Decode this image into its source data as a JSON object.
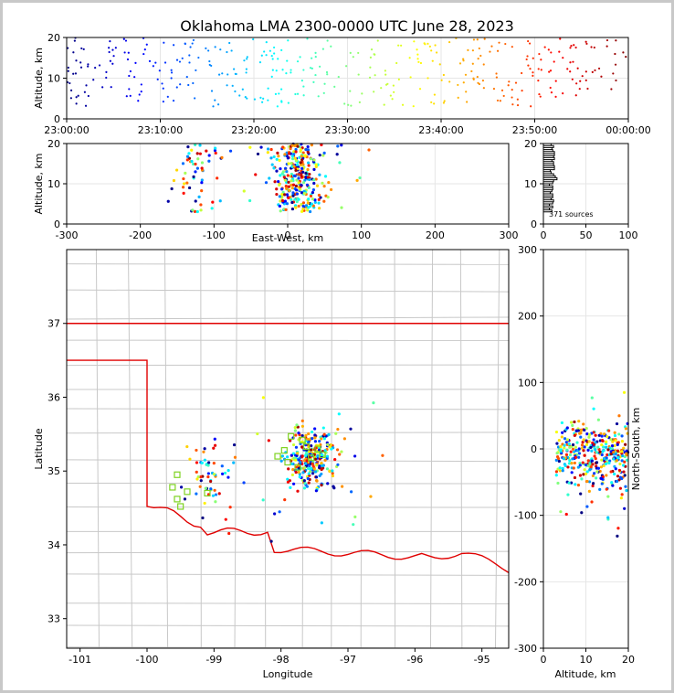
{
  "chart_data": {
    "title": "Oklahoma LMA 2300-0000 UTC June 28, 2023",
    "panels": [
      {
        "type": "scatter",
        "name": "time-height",
        "xlabel": "",
        "ylabel": "Altitude, km",
        "xticks": [
          "23:00:00",
          "23:10:00",
          "23:20:00",
          "23:30:00",
          "23:40:00",
          "23:50:00",
          "00:00:00"
        ],
        "xlim_minutes": [
          0,
          60
        ],
        "ylim": [
          0,
          20
        ],
        "yticks": [
          0,
          10,
          20
        ]
      },
      {
        "type": "scatter",
        "name": "east-west-height",
        "xlabel": "East-West, km",
        "ylabel": "Altitude, km",
        "xlim": [
          -300,
          300
        ],
        "xticks": [
          -300,
          -200,
          -100,
          0,
          100,
          200,
          300
        ],
        "ylim": [
          0,
          20
        ],
        "yticks": [
          0,
          10,
          20
        ]
      },
      {
        "type": "line",
        "name": "altitude-histogram",
        "xlim": [
          0,
          100
        ],
        "xticks": [
          0,
          50,
          100
        ],
        "ylim": [
          0,
          20
        ],
        "yticks": [
          0,
          10,
          20
        ],
        "annotation": "371 sources"
      },
      {
        "type": "scatter",
        "name": "plan-view",
        "xlabel": "Longitude",
        "ylabel": "Latitude",
        "xlim": [
          -101.2,
          -94.6
        ],
        "xticks": [
          -101,
          -100,
          -99,
          -98,
          -97,
          -96,
          -95
        ],
        "ylim": [
          32.6,
          38.0
        ],
        "yticks": [
          33,
          34,
          35,
          36,
          37
        ]
      },
      {
        "type": "scatter",
        "name": "north-south-height",
        "xlabel": "Altitude, km",
        "ylabel": "North-South, km",
        "xlim": [
          0,
          20
        ],
        "xticks": [
          0,
          10,
          20
        ],
        "ylim": [
          -300,
          300
        ],
        "yticks": [
          -300,
          -200,
          -100,
          0,
          100,
          200,
          300
        ]
      }
    ],
    "source_count": 371,
    "stations_lon_lat": [
      [
        -97.85,
        35.47
      ],
      [
        -97.62,
        35.33
      ],
      [
        -97.38,
        35.22
      ],
      [
        -97.9,
        35.12
      ],
      [
        -97.75,
        35.05
      ],
      [
        -97.55,
        35.18
      ],
      [
        -97.95,
        35.28
      ],
      [
        -97.68,
        35.42
      ],
      [
        -98.05,
        35.2
      ],
      [
        -97.45,
        35.3
      ],
      [
        -99.55,
        34.95
      ],
      [
        -99.4,
        34.72
      ],
      [
        -99.1,
        34.7
      ],
      [
        -99.55,
        34.62
      ],
      [
        -99.5,
        34.52
      ],
      [
        -99.62,
        34.78
      ]
    ]
  }
}
